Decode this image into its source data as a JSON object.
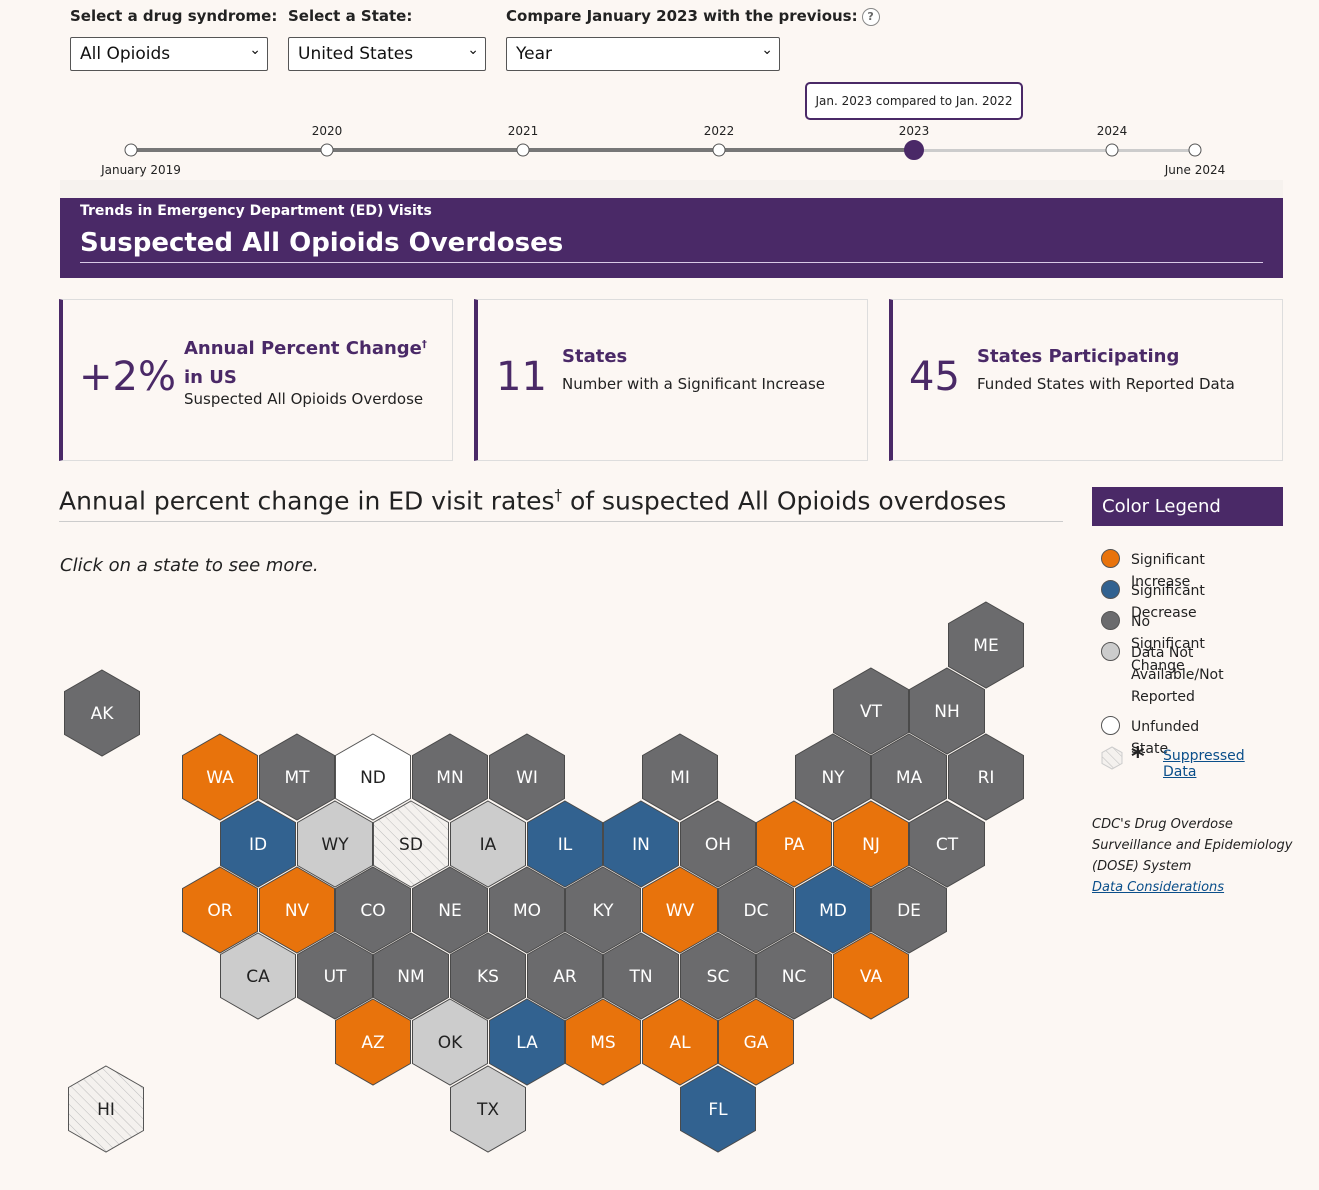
{
  "filters": {
    "syndrome": {
      "label": "Select a drug syndrome:",
      "value": "All Opioids"
    },
    "state": {
      "label": "Select a State:",
      "value": "United States"
    },
    "compare": {
      "label": "Compare January 2023 with the previous:",
      "value": "Year",
      "help": "?"
    }
  },
  "timeline": {
    "start_label": "January 2019",
    "end_label": "June 2024",
    "years": [
      "2020",
      "2021",
      "2022",
      "2023",
      "2024"
    ],
    "selected_year": "2023",
    "tooltip": "Jan. 2023 compared to Jan. 2022"
  },
  "banner": {
    "subtitle": "Trends in Emergency Department (ED) Visits",
    "title": "Suspected All Opioids Overdoses"
  },
  "cards": [
    {
      "number": "+2%",
      "heading": "Annual Percent Change",
      "heading_sup": "†",
      "heading_tail": " in US",
      "description": "Suspected All Opioids Overdose"
    },
    {
      "number": "11",
      "heading": "States",
      "description": "Number with a Significant Increase"
    },
    {
      "number": "45",
      "heading": "States Participating",
      "description": "Funded States with Reported Data"
    }
  ],
  "map": {
    "title": "Annual percent change in ED visit rates",
    "title_sup": "†",
    "title_tail": " of suspected All Opioids overdoses",
    "hint": "Click on a state to see more.",
    "states": [
      {
        "abbr": "AK",
        "status": "no_change"
      },
      {
        "abbr": "ME",
        "status": "no_change"
      },
      {
        "abbr": "VT",
        "status": "no_change"
      },
      {
        "abbr": "NH",
        "status": "no_change"
      },
      {
        "abbr": "WA",
        "status": "increase"
      },
      {
        "abbr": "MT",
        "status": "no_change"
      },
      {
        "abbr": "ND",
        "status": "unfunded"
      },
      {
        "abbr": "MN",
        "status": "no_change"
      },
      {
        "abbr": "WI",
        "status": "no_change"
      },
      {
        "abbr": "MI",
        "status": "no_change"
      },
      {
        "abbr": "NY",
        "status": "no_change"
      },
      {
        "abbr": "MA",
        "status": "no_change"
      },
      {
        "abbr": "RI",
        "status": "no_change"
      },
      {
        "abbr": "ID",
        "status": "decrease"
      },
      {
        "abbr": "WY",
        "status": "not_available"
      },
      {
        "abbr": "SD",
        "status": "suppressed"
      },
      {
        "abbr": "IA",
        "status": "not_available"
      },
      {
        "abbr": "IL",
        "status": "decrease"
      },
      {
        "abbr": "IN",
        "status": "decrease"
      },
      {
        "abbr": "OH",
        "status": "no_change"
      },
      {
        "abbr": "PA",
        "status": "increase"
      },
      {
        "abbr": "NJ",
        "status": "increase"
      },
      {
        "abbr": "CT",
        "status": "no_change"
      },
      {
        "abbr": "OR",
        "status": "increase"
      },
      {
        "abbr": "NV",
        "status": "increase"
      },
      {
        "abbr": "CO",
        "status": "no_change"
      },
      {
        "abbr": "NE",
        "status": "no_change"
      },
      {
        "abbr": "MO",
        "status": "no_change"
      },
      {
        "abbr": "KY",
        "status": "no_change"
      },
      {
        "abbr": "WV",
        "status": "increase"
      },
      {
        "abbr": "DC",
        "status": "no_change"
      },
      {
        "abbr": "MD",
        "status": "decrease"
      },
      {
        "abbr": "DE",
        "status": "no_change"
      },
      {
        "abbr": "CA",
        "status": "not_available"
      },
      {
        "abbr": "UT",
        "status": "no_change"
      },
      {
        "abbr": "NM",
        "status": "no_change"
      },
      {
        "abbr": "KS",
        "status": "no_change"
      },
      {
        "abbr": "AR",
        "status": "no_change"
      },
      {
        "abbr": "TN",
        "status": "no_change"
      },
      {
        "abbr": "SC",
        "status": "no_change"
      },
      {
        "abbr": "NC",
        "status": "no_change"
      },
      {
        "abbr": "VA",
        "status": "increase"
      },
      {
        "abbr": "AZ",
        "status": "increase"
      },
      {
        "abbr": "OK",
        "status": "not_available"
      },
      {
        "abbr": "LA",
        "status": "decrease"
      },
      {
        "abbr": "MS",
        "status": "increase"
      },
      {
        "abbr": "AL",
        "status": "increase"
      },
      {
        "abbr": "GA",
        "status": "increase"
      },
      {
        "abbr": "HI",
        "status": "suppressed"
      },
      {
        "abbr": "TX",
        "status": "not_available"
      },
      {
        "abbr": "FL",
        "status": "decrease"
      }
    ]
  },
  "legend": {
    "title": "Color Legend",
    "items": [
      {
        "label": "Significant Increase",
        "color": "#e8730c"
      },
      {
        "label": "Significant Decrease",
        "color": "#326290"
      },
      {
        "label": "No Significant Change",
        "color": "#6b6b6d"
      },
      {
        "label_lines": [
          "Data Not",
          "Available/Not",
          "Reported"
        ],
        "color": "#cccccc"
      },
      {
        "label": "Unfunded State",
        "color": "#ffffff"
      }
    ],
    "suppressed_label": "Suppressed Data",
    "suppressed_symbol": "*"
  },
  "source": {
    "lines": [
      "CDC's Drug Overdose",
      "Surveillance and Epidemiology",
      "(DOSE) System"
    ],
    "link": "Data Considerations"
  },
  "colors": {
    "increase": "#e8730c",
    "decrease": "#326290",
    "no_change": "#6b6b6d",
    "not_available": "#cccccc",
    "unfunded": "#ffffff",
    "suppressed": "#f4f1ee",
    "brand": "#4a2967"
  }
}
